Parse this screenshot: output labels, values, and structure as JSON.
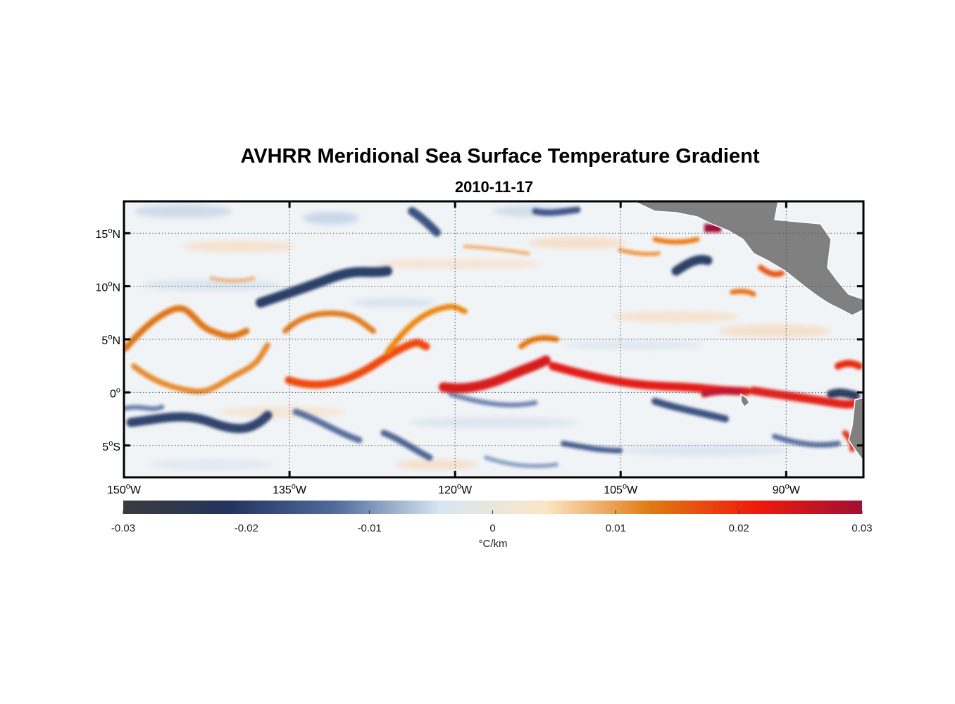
{
  "title": "AVHRR Meridional Sea Surface Temperature Gradient",
  "subtitle": "2010-11-17",
  "map": {
    "lon_range": [
      -150,
      -83
    ],
    "lat_range": [
      -8,
      18
    ],
    "lon_ticks": [
      {
        "value": -150,
        "deg": "150",
        "dir": "W"
      },
      {
        "value": -135,
        "deg": "135",
        "dir": "W"
      },
      {
        "value": -120,
        "deg": "120",
        "dir": "W"
      },
      {
        "value": -105,
        "deg": "105",
        "dir": "W"
      },
      {
        "value": -90,
        "deg": "90",
        "dir": "W"
      }
    ],
    "lat_ticks": [
      {
        "value": 15,
        "deg": "15",
        "dir": "N"
      },
      {
        "value": 10,
        "deg": "10",
        "dir": "N"
      },
      {
        "value": 5,
        "deg": "5",
        "dir": "N"
      },
      {
        "value": 0,
        "deg": "0",
        "dir": ""
      },
      {
        "value": -5,
        "deg": "5",
        "dir": "S"
      }
    ],
    "degree_symbol": "o",
    "land_color": "#808080",
    "grid": true
  },
  "colorbar": {
    "range": [
      -0.03,
      0.03
    ],
    "ticks": [
      "-0.03",
      "-0.02",
      "-0.01",
      "0",
      "0.01",
      "0.02",
      "0.03"
    ],
    "tick_values": [
      -0.03,
      -0.02,
      -0.01,
      0,
      0.01,
      0.02,
      0.03
    ],
    "unit": "°C/km",
    "colormap": [
      "#3b3b3f",
      "#22345c",
      "#4f6a9c",
      "#d6e6f2",
      "#fbe6c6",
      "#e07a12",
      "#ee1a0a",
      "#a01034"
    ]
  }
}
